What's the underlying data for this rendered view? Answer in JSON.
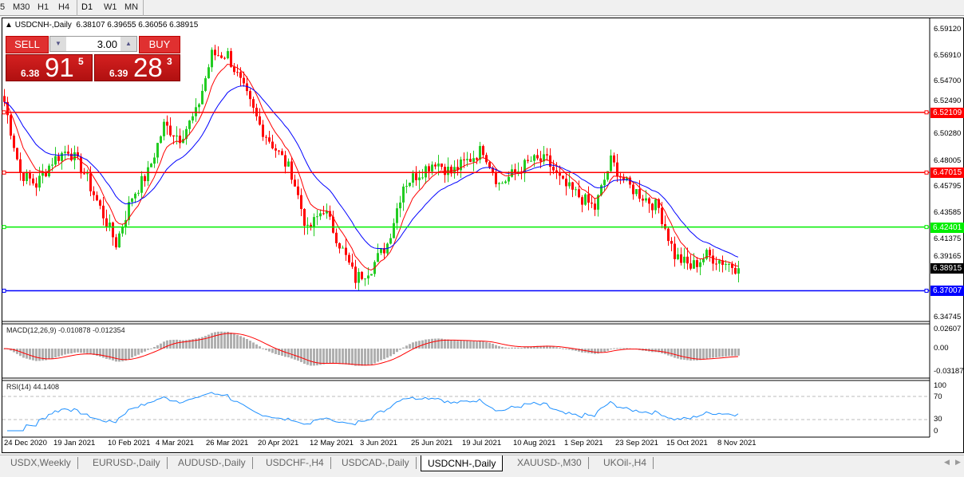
{
  "timeframes": [
    "5",
    "M30",
    "H1",
    "H4",
    "D1",
    "W1",
    "MN"
  ],
  "active_timeframe": "D1",
  "chart": {
    "symbol_header": "USDCNH-,Daily",
    "ohlc": "6.38107 6.39655 6.36056 6.38915"
  },
  "trade_panel": {
    "sell_label": "SELL",
    "buy_label": "BUY",
    "lot": "3.00",
    "sell_prefix": "6.38",
    "sell_big": "91",
    "sell_sup": "5",
    "buy_prefix": "6.39",
    "buy_big": "28",
    "buy_sup": "3"
  },
  "price_axis": {
    "ticks": [
      "6.59120",
      "6.56910",
      "6.54700",
      "6.52490",
      "6.50280",
      "6.48005",
      "6.45795",
      "6.43585",
      "6.41375",
      "6.39165",
      "6.34745"
    ],
    "current_price": "6.38915"
  },
  "hlines": [
    {
      "price": "6.52109",
      "color": "#ff0000"
    },
    {
      "price": "6.47015",
      "color": "#ff0000"
    },
    {
      "price": "6.42401",
      "color": "#00ee00"
    },
    {
      "price": "6.37007",
      "color": "#0000ff"
    }
  ],
  "close_path_weekly": [
    6.53,
    6.47,
    6.46,
    6.48,
    6.49,
    6.47,
    6.44,
    6.41,
    6.45,
    6.47,
    6.51,
    6.5,
    6.52,
    6.57,
    6.57,
    6.54,
    6.51,
    6.49,
    6.47,
    6.42,
    6.44,
    6.41,
    6.38,
    6.39,
    6.41,
    6.46,
    6.47,
    6.48,
    6.47,
    6.48,
    6.49,
    6.46,
    6.47,
    6.48,
    6.48,
    6.46,
    6.45,
    6.44,
    6.48,
    6.46,
    6.45,
    6.44,
    6.4,
    6.39,
    6.4,
    6.395,
    6.389
  ],
  "colors": {
    "bull": "#22cc22",
    "bear": "#ff0000",
    "ma_fast": "#ff0000",
    "ma_slow": "#0000ff",
    "macd_hist": "#b0b0b0"
  },
  "macd": {
    "label": "MACD(12,26,9) -0.010878 -0.012354",
    "ticks": [
      "0.02607",
      "0.00",
      "-0.031872"
    ]
  },
  "rsi": {
    "label": "RSI(14) 44.1408",
    "ticks": [
      "100",
      "70",
      "30",
      "0"
    ]
  },
  "dates": [
    "24 Dec 2020",
    "19 Jan 2021",
    "10 Feb 2021",
    "4 Mar 2021",
    "26 Mar 2021",
    "20 Apr 2021",
    "12 May 2021",
    "3 Jun 2021",
    "25 Jun 2021",
    "19 Jul 2021",
    "10 Aug 2021",
    "1 Sep 2021",
    "23 Sep 2021",
    "15 Oct 2021",
    "8 Nov 2021"
  ],
  "tabs": [
    "USDX,Weekly",
    "EURUSD-,Daily",
    "AUDUSD-,Daily",
    "USDCHF-,H4",
    "USDCAD-,Daily",
    "USDCNH-,Daily",
    "XAUUSD-,M30",
    "UKOil-,H4"
  ],
  "active_tab": "USDCNH-,Daily"
}
